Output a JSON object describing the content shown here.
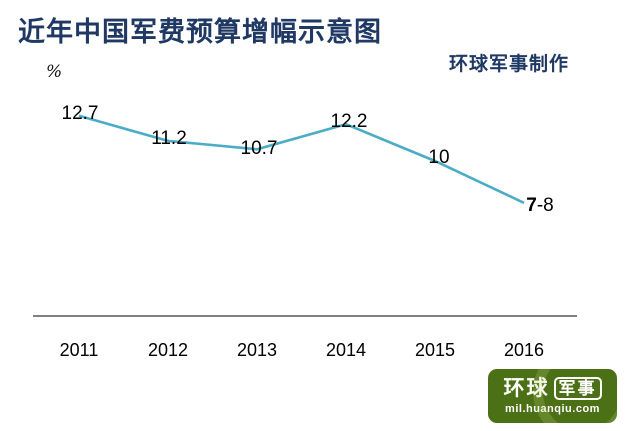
{
  "title": "近年中国军费预算增幅示意图",
  "credit": "环球军事制作",
  "chart_data": {
    "type": "line",
    "title": "近年中国军费预算增幅示意图",
    "categories": [
      "2011",
      "2012",
      "2013",
      "2014",
      "2015",
      "2016"
    ],
    "values": [
      12.7,
      11.2,
      10.7,
      12.2,
      10,
      7.5
    ],
    "labels": [
      "12.7",
      "11.2",
      "10.7",
      "12.2",
      "10",
      {
        "parts": [
          {
            "t": "7",
            "bold": true
          },
          {
            "t": "-8",
            "bold": false
          }
        ]
      }
    ],
    "xlabel": "",
    "ylabel": "%",
    "ylim": [
      6,
      14
    ],
    "grid": false,
    "legend": false,
    "line_color": "#4bacc6",
    "axis_color": "#808080",
    "label_color": "#000000",
    "title_color": "#1f3864"
  },
  "logo": {
    "brand_left": "环球",
    "brand_right": "军事",
    "url_text": "mil.huanqiu.com",
    "bg_color": "#4c7016"
  }
}
